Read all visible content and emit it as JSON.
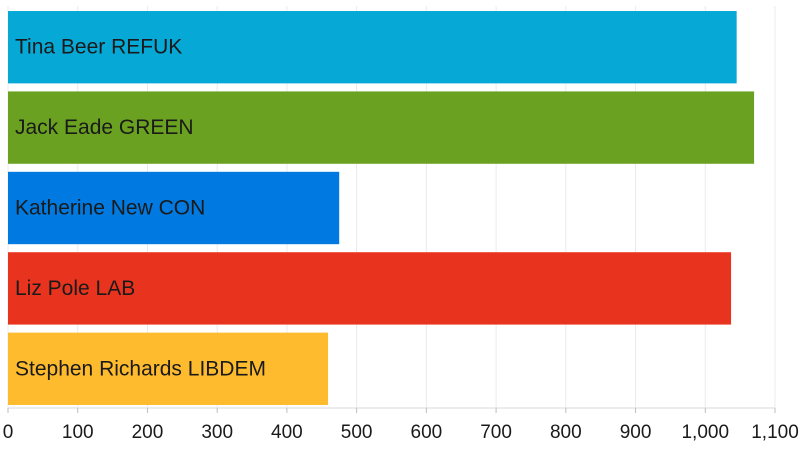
{
  "chart_data": {
    "type": "bar",
    "orientation": "horizontal",
    "categories": [
      "Tina Beer REFUK",
      "Jack Eade GREEN",
      "Katherine New CON",
      "Liz Pole LAB",
      "Stephen Richards LIBDEM"
    ],
    "values": [
      1045,
      1070,
      475,
      1037,
      459
    ],
    "colors": [
      "#06a8d6",
      "#6aa121",
      "#0079e0",
      "#e8341f",
      "#ffbb2e"
    ],
    "xlim": [
      0,
      1100
    ],
    "x_ticks": [
      0,
      100,
      200,
      300,
      400,
      500,
      600,
      700,
      800,
      900,
      1000,
      1100
    ],
    "x_tick_labels": [
      "0",
      "100",
      "200",
      "300",
      "400",
      "500",
      "600",
      "700",
      "800",
      "900",
      "1,000",
      "1,100"
    ],
    "grid": true,
    "legend": "none"
  }
}
